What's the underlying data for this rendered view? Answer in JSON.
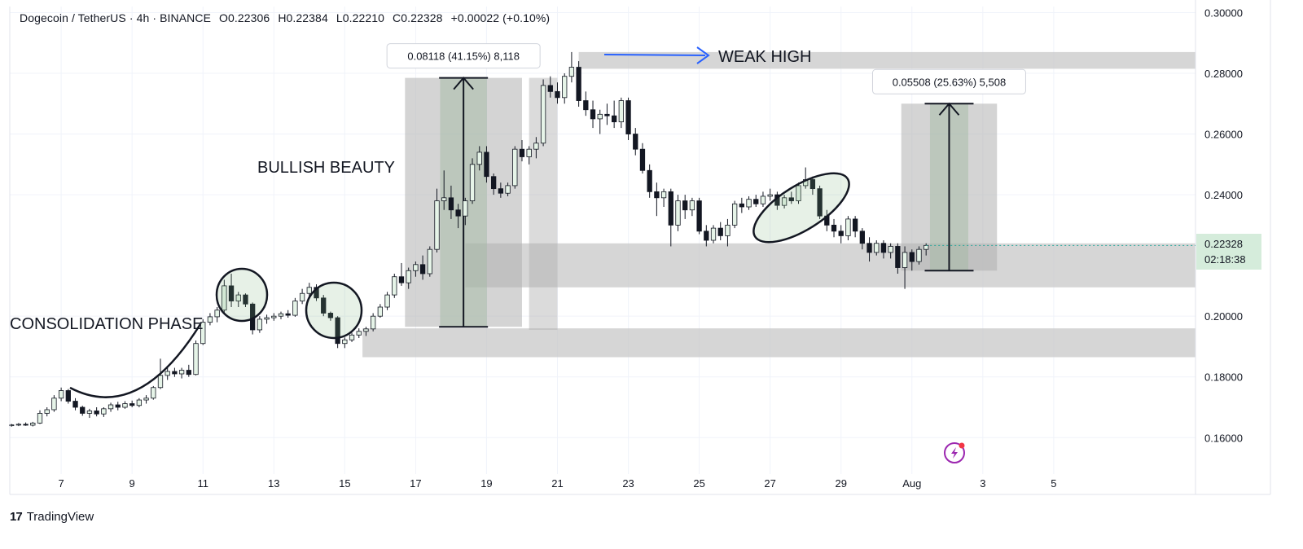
{
  "header": {
    "symbol": "Dogecoin / TetherUS · 4h · BINANCE",
    "open": "O0.22306",
    "high": "H0.22384",
    "low": "L0.22210",
    "close": "C0.22328",
    "change": "+0.00022 (+0.10%)"
  },
  "price_badge": {
    "price": "0.22328",
    "countdown": "02:18:38",
    "color": "#cfe8d6"
  },
  "annotations": {
    "consolidation": "CONSOLIDATION PHASE",
    "bullish": "BULLISH BEAUTY",
    "weak_high": "WEAK HIGH",
    "measure1": "0.08118 (41.15%) 8,118",
    "measure2": "0.05508 (25.63%) 5,508"
  },
  "brand": {
    "name": "TradingView",
    "logo": "17"
  },
  "colors": {
    "up_fill": "#e6f4e8",
    "down_fill": "#131722",
    "zone": "#c4c4c4",
    "arrow_blue": "#2962ff"
  },
  "chart_data": {
    "type": "candlestick",
    "y_axis_ticks": [
      "0.30000",
      "0.28000",
      "0.26000",
      "0.24000",
      "0.20000",
      "0.18000",
      "0.16000"
    ],
    "x_axis_ticks": [
      "7",
      "9",
      "11",
      "13",
      "15",
      "17",
      "19",
      "21",
      "23",
      "25",
      "27",
      "29",
      "Aug",
      "3",
      "5"
    ],
    "x_axis_positions": [
      7,
      9,
      11,
      13,
      15,
      17,
      19,
      21,
      23,
      25,
      27,
      29,
      31,
      33,
      35
    ],
    "ylim": [
      0.148,
      0.302
    ],
    "xlim": [
      5.55,
      39.0
    ],
    "zones": [
      {
        "x0": 15.5,
        "x1": 39.0,
        "y0": 0.1865,
        "y1": 0.196
      },
      {
        "x0": 18.4,
        "x1": 39.0,
        "y0": 0.2095,
        "y1": 0.224
      },
      {
        "x0": 21.6,
        "x1": 39.0,
        "y0": 0.2815,
        "y1": 0.287
      }
    ],
    "measures": [
      {
        "x0": 16.7,
        "x1": 20.0,
        "y0": 0.1965,
        "y1": 0.2785,
        "label": "0.08118 (41.15%) 8,118"
      },
      {
        "x0": 30.7,
        "x1": 33.4,
        "y0": 0.215,
        "y1": 0.27,
        "label": "0.05508 (25.63%) 5,508"
      }
    ],
    "candles": [
      [
        5.6,
        0.164,
        0.1645,
        0.1636,
        0.1642
      ],
      [
        5.8,
        0.1642,
        0.1648,
        0.1638,
        0.1644
      ],
      [
        6.0,
        0.1644,
        0.165,
        0.1639,
        0.1641
      ],
      [
        6.2,
        0.1641,
        0.1652,
        0.1637,
        0.1648
      ],
      [
        6.4,
        0.1648,
        0.169,
        0.1645,
        0.168
      ],
      [
        6.6,
        0.168,
        0.17,
        0.167,
        0.1692
      ],
      [
        6.8,
        0.1692,
        0.174,
        0.1685,
        0.173
      ],
      [
        7.0,
        0.173,
        0.1765,
        0.172,
        0.1755
      ],
      [
        7.2,
        0.1755,
        0.176,
        0.1712,
        0.172
      ],
      [
        7.4,
        0.172,
        0.173,
        0.169,
        0.17
      ],
      [
        7.6,
        0.17,
        0.1705,
        0.1672,
        0.168
      ],
      [
        7.8,
        0.168,
        0.1695,
        0.1665,
        0.1688
      ],
      [
        8.0,
        0.1688,
        0.17,
        0.167,
        0.1678
      ],
      [
        8.2,
        0.1678,
        0.17,
        0.1668,
        0.1695
      ],
      [
        8.4,
        0.1695,
        0.1715,
        0.1685,
        0.1708
      ],
      [
        8.6,
        0.1708,
        0.1718,
        0.169,
        0.17
      ],
      [
        8.8,
        0.17,
        0.172,
        0.1695,
        0.1712
      ],
      [
        9.0,
        0.1712,
        0.1722,
        0.17,
        0.1706
      ],
      [
        9.2,
        0.1706,
        0.173,
        0.17,
        0.1724
      ],
      [
        9.4,
        0.1724,
        0.174,
        0.1712,
        0.173
      ],
      [
        9.6,
        0.173,
        0.177,
        0.1725,
        0.1765
      ],
      [
        9.8,
        0.1765,
        0.186,
        0.176,
        0.1805
      ],
      [
        10.0,
        0.1805,
        0.183,
        0.179,
        0.1818
      ],
      [
        10.2,
        0.1818,
        0.183,
        0.18,
        0.181
      ],
      [
        10.4,
        0.181,
        0.183,
        0.1795,
        0.1822
      ],
      [
        10.6,
        0.1822,
        0.184,
        0.18,
        0.1808
      ],
      [
        10.8,
        0.1808,
        0.192,
        0.1805,
        0.191
      ],
      [
        11.0,
        0.191,
        0.199,
        0.1905,
        0.198
      ],
      [
        11.2,
        0.198,
        0.201,
        0.197,
        0.1998
      ],
      [
        11.4,
        0.1998,
        0.203,
        0.198,
        0.202
      ],
      [
        11.6,
        0.202,
        0.212,
        0.201,
        0.21
      ],
      [
        11.8,
        0.21,
        0.214,
        0.203,
        0.205
      ],
      [
        12.0,
        0.205,
        0.208,
        0.203,
        0.207
      ],
      [
        12.2,
        0.207,
        0.2075,
        0.203,
        0.204
      ],
      [
        12.4,
        0.204,
        0.2045,
        0.194,
        0.1955
      ],
      [
        12.6,
        0.1955,
        0.2,
        0.1945,
        0.199
      ],
      [
        12.8,
        0.199,
        0.2005,
        0.1975,
        0.1995
      ],
      [
        13.0,
        0.1995,
        0.201,
        0.1985,
        0.2
      ],
      [
        13.2,
        0.2,
        0.2015,
        0.199,
        0.2008
      ],
      [
        13.4,
        0.2008,
        0.202,
        0.1995,
        0.2003
      ],
      [
        13.6,
        0.2003,
        0.206,
        0.1998,
        0.205
      ],
      [
        13.8,
        0.205,
        0.209,
        0.204,
        0.2075
      ],
      [
        14.0,
        0.2075,
        0.211,
        0.206,
        0.2095
      ],
      [
        14.2,
        0.2095,
        0.2105,
        0.205,
        0.206
      ],
      [
        14.4,
        0.206,
        0.207,
        0.2,
        0.201
      ],
      [
        14.6,
        0.201,
        0.2015,
        0.1985,
        0.1995
      ],
      [
        14.8,
        0.1995,
        0.2,
        0.1895,
        0.191
      ],
      [
        15.0,
        0.191,
        0.193,
        0.1895,
        0.1922
      ],
      [
        15.2,
        0.1922,
        0.1945,
        0.1915,
        0.1938
      ],
      [
        15.4,
        0.1938,
        0.196,
        0.1928,
        0.195
      ],
      [
        15.6,
        0.195,
        0.1965,
        0.1935,
        0.1958
      ],
      [
        15.8,
        0.1958,
        0.201,
        0.195,
        0.2
      ],
      [
        16.0,
        0.2,
        0.204,
        0.1995,
        0.203
      ],
      [
        16.2,
        0.203,
        0.208,
        0.202,
        0.207
      ],
      [
        16.4,
        0.207,
        0.214,
        0.206,
        0.213
      ],
      [
        16.6,
        0.213,
        0.2175,
        0.21,
        0.211
      ],
      [
        16.8,
        0.211,
        0.216,
        0.209,
        0.215
      ],
      [
        17.0,
        0.215,
        0.218,
        0.213,
        0.217
      ],
      [
        17.2,
        0.217,
        0.22,
        0.212,
        0.214
      ],
      [
        17.4,
        0.214,
        0.223,
        0.213,
        0.222
      ],
      [
        17.6,
        0.222,
        0.242,
        0.221,
        0.238
      ],
      [
        17.8,
        0.238,
        0.248,
        0.235,
        0.239
      ],
      [
        18.0,
        0.239,
        0.243,
        0.232,
        0.235
      ],
      [
        18.2,
        0.235,
        0.237,
        0.229,
        0.233
      ],
      [
        18.4,
        0.233,
        0.239,
        0.23,
        0.238
      ],
      [
        18.6,
        0.238,
        0.252,
        0.237,
        0.25
      ],
      [
        18.8,
        0.25,
        0.256,
        0.248,
        0.254
      ],
      [
        19.0,
        0.254,
        0.256,
        0.244,
        0.246
      ],
      [
        19.2,
        0.246,
        0.247,
        0.24,
        0.242
      ],
      [
        19.4,
        0.242,
        0.244,
        0.239,
        0.2405
      ],
      [
        19.6,
        0.2405,
        0.244,
        0.2395,
        0.243
      ],
      [
        19.8,
        0.243,
        0.256,
        0.242,
        0.255
      ],
      [
        20.0,
        0.255,
        0.258,
        0.251,
        0.2525
      ],
      [
        20.2,
        0.2525,
        0.256,
        0.25,
        0.255
      ],
      [
        20.4,
        0.255,
        0.259,
        0.252,
        0.257
      ],
      [
        20.6,
        0.257,
        0.278,
        0.256,
        0.276
      ],
      [
        20.8,
        0.276,
        0.279,
        0.272,
        0.274
      ],
      [
        21.0,
        0.274,
        0.277,
        0.27,
        0.272
      ],
      [
        21.2,
        0.272,
        0.28,
        0.27,
        0.279
      ],
      [
        21.4,
        0.279,
        0.287,
        0.277,
        0.282
      ],
      [
        21.6,
        0.282,
        0.284,
        0.269,
        0.271
      ],
      [
        21.8,
        0.271,
        0.274,
        0.266,
        0.268
      ],
      [
        22.0,
        0.268,
        0.271,
        0.262,
        0.265
      ],
      [
        22.2,
        0.265,
        0.268,
        0.26,
        0.2665
      ],
      [
        22.4,
        0.2665,
        0.27,
        0.263,
        0.266
      ],
      [
        22.6,
        0.266,
        0.271,
        0.262,
        0.264
      ],
      [
        22.8,
        0.264,
        0.272,
        0.262,
        0.271
      ],
      [
        23.0,
        0.271,
        0.272,
        0.258,
        0.26
      ],
      [
        23.2,
        0.26,
        0.262,
        0.253,
        0.255
      ],
      [
        23.4,
        0.255,
        0.257,
        0.247,
        0.248
      ],
      [
        23.6,
        0.248,
        0.25,
        0.239,
        0.241
      ],
      [
        23.8,
        0.241,
        0.244,
        0.233,
        0.239
      ],
      [
        24.0,
        0.239,
        0.242,
        0.236,
        0.241
      ],
      [
        24.2,
        0.241,
        0.242,
        0.223,
        0.23
      ],
      [
        24.4,
        0.23,
        0.24,
        0.228,
        0.238
      ],
      [
        24.6,
        0.238,
        0.24,
        0.232,
        0.235
      ],
      [
        24.8,
        0.235,
        0.239,
        0.233,
        0.238
      ],
      [
        25.0,
        0.238,
        0.239,
        0.227,
        0.228
      ],
      [
        25.2,
        0.228,
        0.23,
        0.223,
        0.225
      ],
      [
        25.4,
        0.225,
        0.23,
        0.224,
        0.229
      ],
      [
        25.6,
        0.229,
        0.231,
        0.225,
        0.2265
      ],
      [
        25.8,
        0.2265,
        0.232,
        0.223,
        0.23
      ],
      [
        26.0,
        0.23,
        0.238,
        0.229,
        0.237
      ],
      [
        26.2,
        0.237,
        0.239,
        0.234,
        0.236
      ],
      [
        26.4,
        0.236,
        0.2395,
        0.235,
        0.2385
      ],
      [
        26.6,
        0.2385,
        0.24,
        0.236,
        0.237
      ],
      [
        26.8,
        0.237,
        0.241,
        0.236,
        0.2395
      ],
      [
        27.0,
        0.2395,
        0.242,
        0.238,
        0.24
      ],
      [
        27.2,
        0.24,
        0.241,
        0.235,
        0.2365
      ],
      [
        27.4,
        0.2365,
        0.24,
        0.2355,
        0.239
      ],
      [
        27.6,
        0.239,
        0.241,
        0.237,
        0.238
      ],
      [
        27.8,
        0.238,
        0.244,
        0.237,
        0.243
      ],
      [
        28.0,
        0.243,
        0.249,
        0.242,
        0.245
      ],
      [
        28.2,
        0.245,
        0.246,
        0.24,
        0.242
      ],
      [
        28.4,
        0.242,
        0.243,
        0.232,
        0.233
      ],
      [
        28.6,
        0.233,
        0.235,
        0.228,
        0.23
      ],
      [
        28.8,
        0.23,
        0.232,
        0.226,
        0.228
      ],
      [
        29.0,
        0.228,
        0.23,
        0.224,
        0.2265
      ],
      [
        29.2,
        0.2265,
        0.233,
        0.225,
        0.232
      ],
      [
        29.4,
        0.232,
        0.233,
        0.226,
        0.228
      ],
      [
        29.6,
        0.228,
        0.229,
        0.222,
        0.224
      ],
      [
        29.8,
        0.224,
        0.226,
        0.218,
        0.221
      ],
      [
        30.0,
        0.221,
        0.225,
        0.22,
        0.224
      ],
      [
        30.2,
        0.224,
        0.225,
        0.219,
        0.221
      ],
      [
        30.4,
        0.221,
        0.224,
        0.219,
        0.223
      ],
      [
        30.6,
        0.223,
        0.224,
        0.214,
        0.216
      ],
      [
        30.8,
        0.216,
        0.223,
        0.209,
        0.221
      ],
      [
        31.0,
        0.221,
        0.222,
        0.215,
        0.218
      ],
      [
        31.2,
        0.218,
        0.223,
        0.217,
        0.222
      ],
      [
        31.4,
        0.222,
        0.224,
        0.22,
        0.2233
      ]
    ]
  }
}
